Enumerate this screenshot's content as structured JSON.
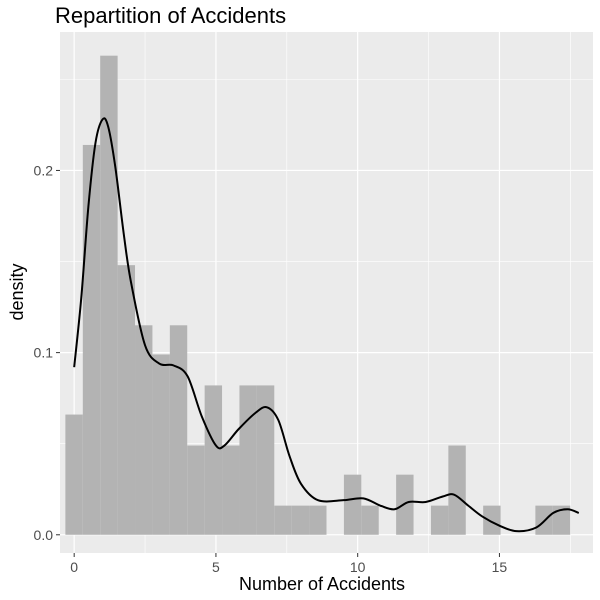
{
  "colors": {
    "panel_background": "#ebebeb",
    "grid_major": "#ffffff",
    "bar_fill": "#b3b3b3",
    "density_line": "#000000",
    "tick_text": "#4d4d4d"
  },
  "chart_data": {
    "type": "bar",
    "title": "Repartition of Accidents",
    "xlabel": "Number of Accidents",
    "ylabel": "density",
    "xlim": [
      -0.5,
      18.3
    ],
    "ylim": [
      -0.01,
      0.276
    ],
    "x_ticks": [
      0,
      5,
      10,
      15
    ],
    "y_ticks": [
      0.0,
      0.1,
      0.2
    ],
    "x_tick_labels": [
      "0",
      "5",
      "10",
      "15"
    ],
    "y_tick_labels": [
      "0.0",
      "0.1",
      "0.2"
    ],
    "grid": true,
    "legend": "none",
    "histogram": {
      "bin_width": 0.614,
      "first_bin_start": -0.31,
      "densities": [
        0.066,
        0.214,
        0.263,
        0.148,
        0.115,
        0.099,
        0.115,
        0.049,
        0.082,
        0.049,
        0.082,
        0.082,
        0.016,
        0.016,
        0.016,
        0,
        0.033,
        0.016,
        0,
        0.033,
        0,
        0.016,
        0.049,
        0,
        0.016,
        0,
        0,
        0.016,
        0.016
      ]
    },
    "density_curve": {
      "x": [
        0.0,
        0.25,
        0.5,
        0.75,
        1.0,
        1.2,
        1.45,
        1.75,
        2.0,
        2.5,
        3.0,
        3.5,
        4.0,
        4.5,
        5.0,
        5.3,
        5.8,
        6.4,
        6.8,
        7.2,
        7.6,
        8.0,
        8.6,
        9.5,
        10.2,
        10.8,
        11.3,
        11.8,
        12.4,
        13.0,
        13.4,
        13.9,
        14.4,
        15.0,
        15.6,
        16.3,
        16.9,
        17.4,
        17.8
      ],
      "y": [
        0.092,
        0.13,
        0.18,
        0.215,
        0.228,
        0.224,
        0.202,
        0.165,
        0.139,
        0.104,
        0.094,
        0.093,
        0.087,
        0.065,
        0.049,
        0.049,
        0.058,
        0.067,
        0.07,
        0.063,
        0.043,
        0.028,
        0.019,
        0.019,
        0.02,
        0.016,
        0.014,
        0.018,
        0.018,
        0.021,
        0.022,
        0.016,
        0.01,
        0.005,
        0.002,
        0.004,
        0.012,
        0.014,
        0.012
      ]
    }
  }
}
